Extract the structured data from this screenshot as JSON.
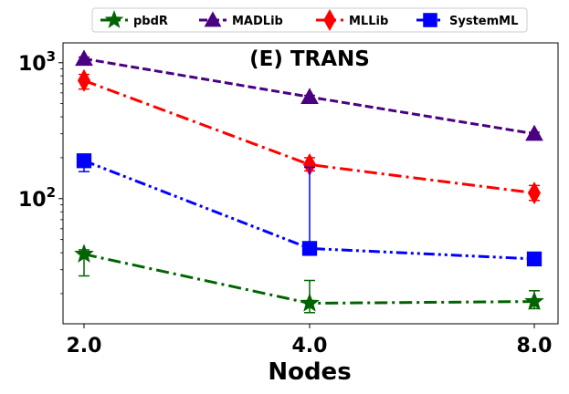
{
  "chart_data": {
    "type": "line",
    "title": "(E) TRANS",
    "xlabel": "Nodes",
    "ylabel": "",
    "yscale": "log",
    "ylim": [
      12,
      1400
    ],
    "x": [
      2.0,
      4.0,
      8.0
    ],
    "x_tick_labels": [
      "2.0",
      "4.0",
      "8.0"
    ],
    "y_ticks": [
      {
        "base": "10",
        "exp": "2",
        "value": 100
      },
      {
        "base": "10",
        "exp": "3",
        "value": 1000
      }
    ],
    "legend_position": "top (above plot)",
    "series": [
      {
        "name": "pbdR",
        "color": "#006400",
        "marker": "star",
        "linestyle": "dashdot",
        "values": [
          39,
          17,
          17.5
        ],
        "err_low": [
          27,
          14.5,
          15.5
        ],
        "err_high": [
          42,
          25,
          21
        ]
      },
      {
        "name": "MADLib",
        "color": "#4b0082",
        "marker": "triangle",
        "linestyle": "dashed",
        "values": [
          1070,
          560,
          300
        ],
        "err_low": [
          1040,
          545,
          292
        ],
        "err_high": [
          1100,
          575,
          308
        ]
      },
      {
        "name": "MLLib",
        "color": "#ff0000",
        "marker": "diamond",
        "linestyle": "dashdot",
        "values": [
          740,
          178,
          110
        ],
        "err_low": [
          640,
          160,
          97
        ],
        "err_high": [
          820,
          200,
          125
        ]
      },
      {
        "name": "SystemML",
        "color": "#0000ff",
        "marker": "square",
        "linestyle": "dashdotdot",
        "values": [
          190,
          43,
          36
        ],
        "err_low": [
          158,
          41,
          35
        ],
        "err_high": [
          205,
          170,
          38
        ]
      }
    ]
  }
}
